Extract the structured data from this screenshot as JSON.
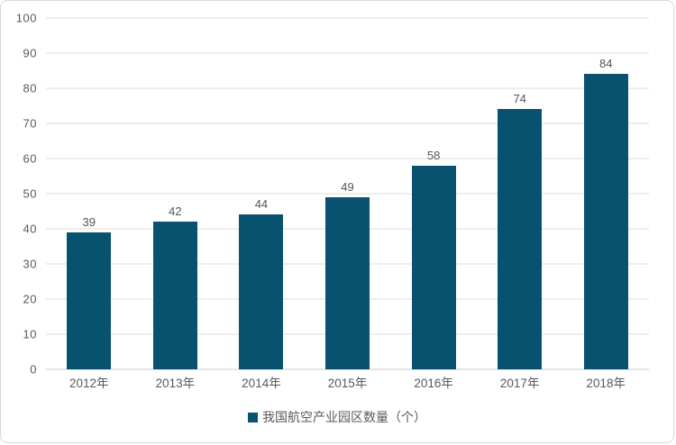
{
  "chart_data": {
    "type": "bar",
    "title": "",
    "categories": [
      "2012年",
      "2013年",
      "2014年",
      "2015年",
      "2016年",
      "2017年",
      "2018年"
    ],
    "values": [
      39,
      42,
      44,
      49,
      58,
      74,
      84
    ],
    "series_name": "我国航空产业园区数量（个）",
    "xlabel": "",
    "ylabel": "",
    "ylim": [
      0,
      100
    ],
    "yticks": [
      0,
      10,
      20,
      30,
      40,
      50,
      60,
      70,
      80,
      90,
      100
    ],
    "grid": true,
    "legend_position": "bottom",
    "colors": {
      "bar": "#07536f",
      "gridline": "#dcdcdc",
      "axis_line": "#c9c9c9",
      "tick_label": "#595959",
      "value_label": "#555555",
      "frame_border": "#d9d9d9",
      "background": "#ffffff"
    }
  },
  "legend": {
    "label": "我国航空产业园区数量（个）",
    "marker": "square-icon"
  }
}
